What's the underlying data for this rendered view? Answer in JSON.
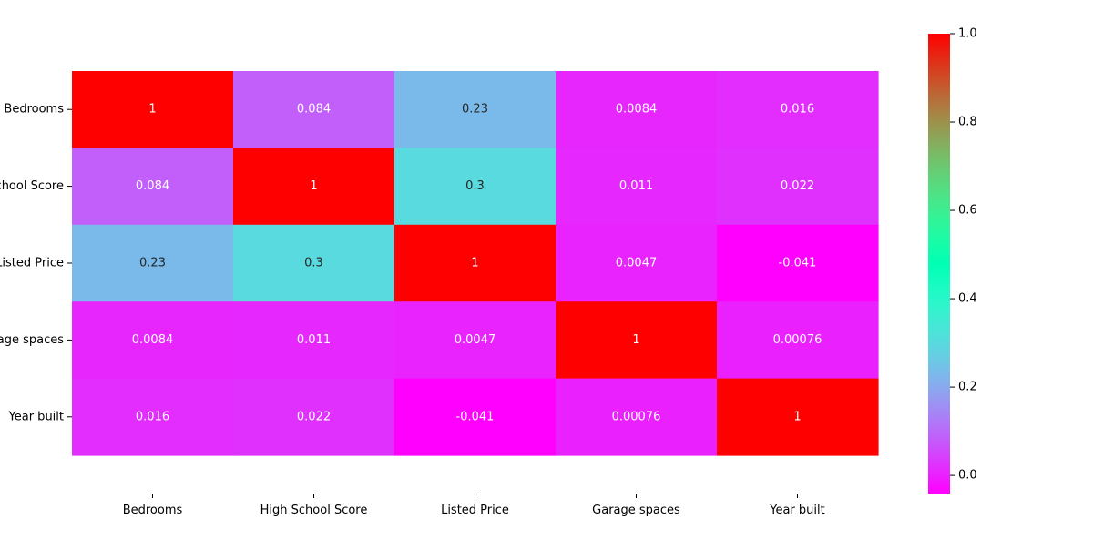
{
  "chart_data": {
    "type": "heatmap",
    "rows": [
      "Bedrooms",
      "High School Score",
      "Listed Price",
      "Garage spaces",
      "Year built"
    ],
    "columns": [
      "Bedrooms",
      "High School Score",
      "Listed Price",
      "Garage spaces",
      "Year built"
    ],
    "values": [
      [
        1,
        0.084,
        0.23,
        0.0084,
        0.016
      ],
      [
        0.084,
        1,
        0.3,
        0.011,
        0.022
      ],
      [
        0.23,
        0.3,
        1,
        0.0047,
        -0.041
      ],
      [
        0.0084,
        0.011,
        0.0047,
        1,
        0.00076
      ],
      [
        0.016,
        0.022,
        -0.041,
        0.00076,
        1
      ]
    ],
    "cell_labels": [
      [
        "1",
        "0.084",
        "0.23",
        "0.0084",
        "0.016"
      ],
      [
        "0.084",
        "1",
        "0.3",
        "0.011",
        "0.022"
      ],
      [
        "0.23",
        "0.3",
        "1",
        "0.0047",
        "-0.041"
      ],
      [
        "0.0084",
        "0.011",
        "0.0047",
        "1",
        "0.00076"
      ],
      [
        "0.016",
        "0.022",
        "-0.041",
        "0.00076",
        "1"
      ]
    ],
    "colormap": "rainbow",
    "vmin": -0.041,
    "vmax": 1.0,
    "colorbar": {
      "ticks": [
        0.0,
        0.2,
        0.4,
        0.6,
        0.8,
        1.0
      ],
      "tick_labels": [
        "0.0",
        "0.2",
        "0.4",
        "0.6",
        "0.8",
        "1.0"
      ],
      "placement": "right"
    },
    "title": "",
    "xlabel": "",
    "ylabel": ""
  }
}
